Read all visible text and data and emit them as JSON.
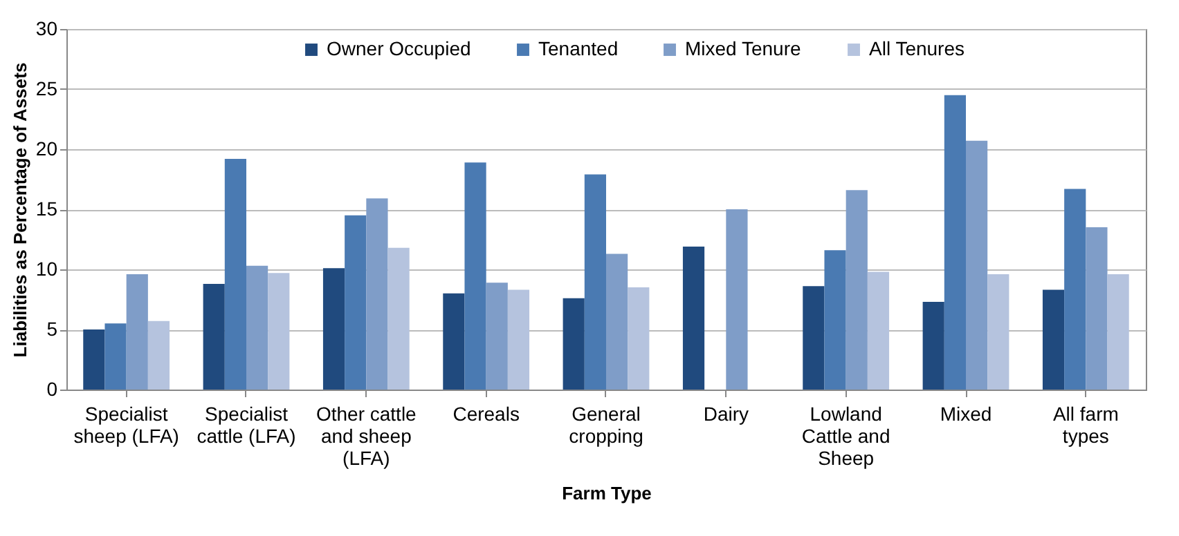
{
  "chart_data": {
    "type": "bar",
    "xlabel": "Farm Type",
    "ylabel": "Liabilities as Percentage of Assets",
    "categories": [
      "Specialist sheep (LFA)",
      "Specialist cattle (LFA)",
      "Other cattle and sheep (LFA)",
      "Cereals",
      "General cropping",
      "Dairy",
      "Lowland Cattle and Sheep",
      "Mixed",
      "All farm types"
    ],
    "series": [
      {
        "name": "Owner Occupied",
        "color": "#204a7e",
        "values": [
          5.0,
          8.8,
          10.1,
          8.0,
          7.6,
          11.9,
          8.6,
          7.3,
          8.3
        ]
      },
      {
        "name": "Tenanted",
        "color": "#4a7ab2",
        "values": [
          5.5,
          19.2,
          14.5,
          18.9,
          17.9,
          null,
          11.6,
          24.5,
          16.7
        ]
      },
      {
        "name": "Mixed Tenure",
        "color": "#7f9dc8",
        "values": [
          9.6,
          10.3,
          15.9,
          8.9,
          11.3,
          15.0,
          16.6,
          20.7,
          13.5
        ]
      },
      {
        "name": "All Tenures",
        "color": "#b5c3de",
        "values": [
          5.7,
          9.7,
          11.8,
          8.3,
          8.5,
          null,
          9.8,
          9.6,
          9.6
        ]
      }
    ],
    "ylim": [
      0,
      30
    ],
    "yticks": [
      0,
      5,
      10,
      15,
      20,
      25,
      30
    ],
    "grid": "y",
    "legend": "top"
  }
}
